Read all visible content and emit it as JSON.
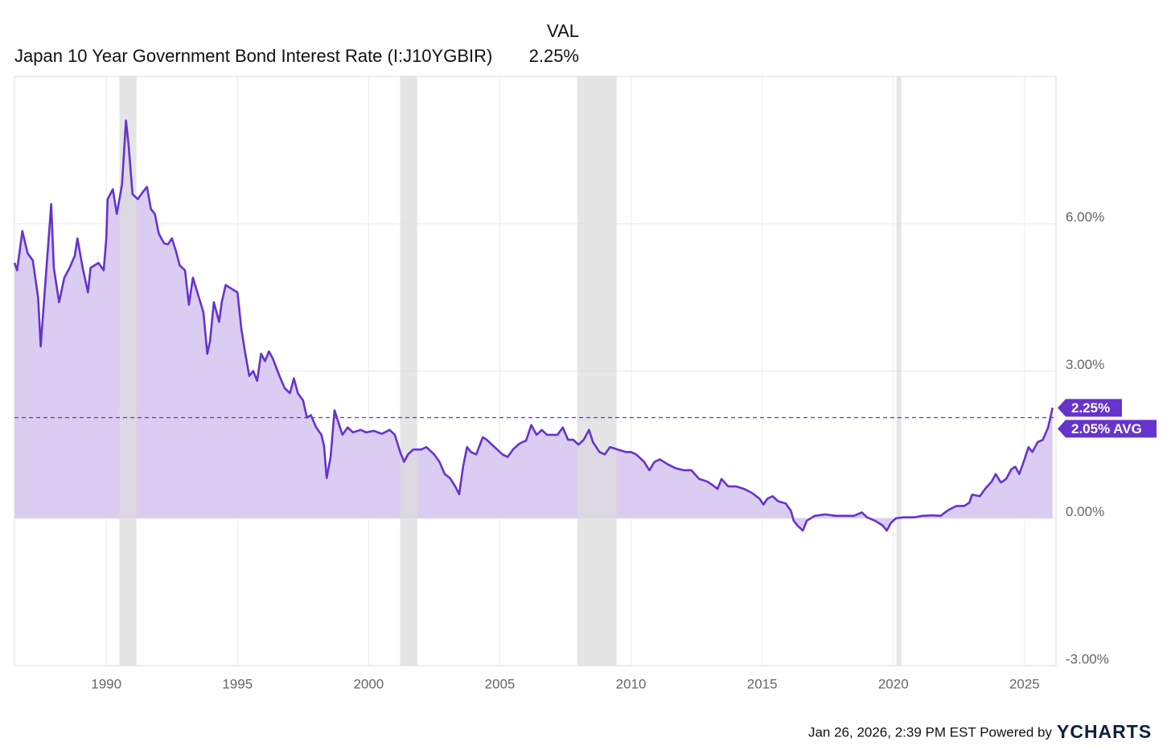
{
  "chart_data": {
    "type": "line",
    "legend_header": "VAL",
    "latest_label": "2.25%",
    "average": 2.05,
    "average_label": "2.05% AVG",
    "xlim": [
      1986.5,
      2026.2
    ],
    "xticks": [
      1990,
      1995,
      2000,
      2005,
      2010,
      2015,
      2020,
      2025
    ],
    "ylim": [
      -3,
      9
    ],
    "yticks": [
      {
        "value": -3,
        "label": "-3.00%"
      },
      {
        "value": 0,
        "label": "0.00%"
      },
      {
        "value": 3,
        "label": "3.00%"
      },
      {
        "value": 6,
        "label": "6.00%"
      }
    ],
    "grid": true,
    "recessions": [
      [
        1990.5,
        1991.15
      ],
      [
        2001.2,
        2001.85
      ],
      [
        2007.95,
        2009.45
      ],
      [
        2020.12,
        2020.3
      ]
    ],
    "recession_color": "#dcdcdc",
    "fill_color": "#dacdf1",
    "x": [
      1986.5,
      1986.6,
      1986.8,
      1987.0,
      1987.2,
      1987.4,
      1987.5,
      1987.65,
      1987.9,
      1988.0,
      1988.2,
      1988.4,
      1988.6,
      1988.8,
      1988.9,
      1989.1,
      1989.3,
      1989.4,
      1989.7,
      1989.9,
      1990.0,
      1990.05,
      1990.25,
      1990.4,
      1990.6,
      1990.75,
      1990.85,
      1991.0,
      1991.2,
      1991.4,
      1991.55,
      1991.7,
      1991.85,
      1992.0,
      1992.2,
      1992.35,
      1992.5,
      1992.65,
      1992.8,
      1993.0,
      1993.15,
      1993.3,
      1993.5,
      1993.7,
      1993.85,
      1993.95,
      1994.1,
      1994.3,
      1994.4,
      1994.55,
      1994.85,
      1995.0,
      1995.15,
      1995.3,
      1995.45,
      1995.6,
      1995.75,
      1995.9,
      1996.05,
      1996.2,
      1996.35,
      1996.6,
      1996.8,
      1997.0,
      1997.15,
      1997.3,
      1997.5,
      1997.65,
      1997.8,
      1998.0,
      1998.2,
      1998.3,
      1998.4,
      1998.55,
      1998.7,
      1998.85,
      1999.0,
      1999.2,
      1999.4,
      1999.7,
      1999.9,
      2000.2,
      2000.5,
      2000.8,
      2001.0,
      2001.2,
      2001.35,
      2001.5,
      2001.7,
      2002.0,
      2002.2,
      2002.5,
      2002.7,
      2002.9,
      2003.1,
      2003.3,
      2003.45,
      2003.6,
      2003.75,
      2003.9,
      2004.1,
      2004.35,
      2004.5,
      2004.7,
      2004.9,
      2005.1,
      2005.3,
      2005.5,
      2005.7,
      2005.85,
      2006.0,
      2006.2,
      2006.4,
      2006.6,
      2006.8,
      2007.0,
      2007.2,
      2007.4,
      2007.6,
      2007.8,
      2008.0,
      2008.2,
      2008.4,
      2008.55,
      2008.8,
      2009.0,
      2009.2,
      2009.5,
      2009.8,
      2010.0,
      2010.2,
      2010.5,
      2010.7,
      2010.9,
      2011.1,
      2011.4,
      2011.7,
      2012.0,
      2012.3,
      2012.6,
      2012.9,
      2013.1,
      2013.3,
      2013.45,
      2013.7,
      2014.0,
      2014.3,
      2014.6,
      2014.9,
      2015.05,
      2015.2,
      2015.4,
      2015.6,
      2015.9,
      2016.1,
      2016.2,
      2016.35,
      2016.55,
      2016.7,
      2017.0,
      2017.4,
      2017.8,
      2018.2,
      2018.5,
      2018.8,
      2019.0,
      2019.3,
      2019.6,
      2019.75,
      2019.9,
      2020.1,
      2020.4,
      2020.8,
      2021.1,
      2021.5,
      2021.8,
      2022.1,
      2022.4,
      2022.7,
      2022.9,
      2023.0,
      2023.3,
      2023.5,
      2023.75,
      2023.9,
      2024.1,
      2024.3,
      2024.5,
      2024.65,
      2024.8,
      2025.0,
      2025.15,
      2025.3,
      2025.5,
      2025.7,
      2025.9,
      2026.07
    ],
    "series": [
      {
        "name": "Japan 10 Year Government Bond Interest Rate (I:J10YGBIR)",
        "color": "#6633cc",
        "values": [
          5.2,
          5.05,
          5.85,
          5.4,
          5.25,
          4.5,
          3.5,
          4.6,
          6.4,
          5.1,
          4.4,
          4.9,
          5.1,
          5.35,
          5.7,
          5.1,
          4.6,
          5.1,
          5.2,
          5.05,
          5.7,
          6.5,
          6.7,
          6.2,
          6.8,
          8.1,
          7.6,
          6.6,
          6.5,
          6.65,
          6.75,
          6.3,
          6.2,
          5.8,
          5.6,
          5.58,
          5.7,
          5.45,
          5.15,
          5.05,
          4.35,
          4.9,
          4.55,
          4.2,
          3.35,
          3.6,
          4.4,
          4.0,
          4.4,
          4.75,
          4.65,
          4.6,
          3.85,
          3.35,
          2.9,
          3.0,
          2.8,
          3.35,
          3.2,
          3.4,
          3.25,
          2.9,
          2.65,
          2.55,
          2.85,
          2.55,
          2.4,
          2.05,
          2.1,
          1.85,
          1.7,
          1.47,
          0.82,
          1.25,
          2.2,
          1.95,
          1.7,
          1.85,
          1.75,
          1.8,
          1.75,
          1.78,
          1.72,
          1.8,
          1.7,
          1.35,
          1.15,
          1.3,
          1.4,
          1.4,
          1.45,
          1.3,
          1.15,
          0.9,
          0.82,
          0.65,
          0.49,
          1.05,
          1.45,
          1.35,
          1.3,
          1.65,
          1.6,
          1.5,
          1.4,
          1.3,
          1.25,
          1.4,
          1.5,
          1.55,
          1.58,
          1.9,
          1.7,
          1.8,
          1.7,
          1.7,
          1.7,
          1.85,
          1.6,
          1.6,
          1.5,
          1.6,
          1.8,
          1.55,
          1.35,
          1.3,
          1.45,
          1.4,
          1.35,
          1.35,
          1.3,
          1.15,
          0.98,
          1.15,
          1.2,
          1.1,
          1.02,
          0.98,
          0.98,
          0.8,
          0.75,
          0.68,
          0.6,
          0.8,
          0.65,
          0.65,
          0.6,
          0.52,
          0.4,
          0.28,
          0.4,
          0.45,
          0.35,
          0.3,
          0.15,
          -0.05,
          -0.15,
          -0.25,
          -0.05,
          0.05,
          0.08,
          0.05,
          0.05,
          0.05,
          0.12,
          0.02,
          -0.05,
          -0.15,
          -0.25,
          -0.1,
          0.0,
          0.02,
          0.02,
          0.05,
          0.06,
          0.05,
          0.17,
          0.25,
          0.25,
          0.32,
          0.48,
          0.45,
          0.6,
          0.75,
          0.9,
          0.73,
          0.8,
          1.0,
          1.05,
          0.9,
          1.2,
          1.45,
          1.35,
          1.55,
          1.6,
          1.85,
          2.25
        ]
      }
    ]
  },
  "footer": {
    "timestamp": "Jan 26, 2026, 2:39 PM EST Powered by",
    "brand": "YCHARTS"
  }
}
